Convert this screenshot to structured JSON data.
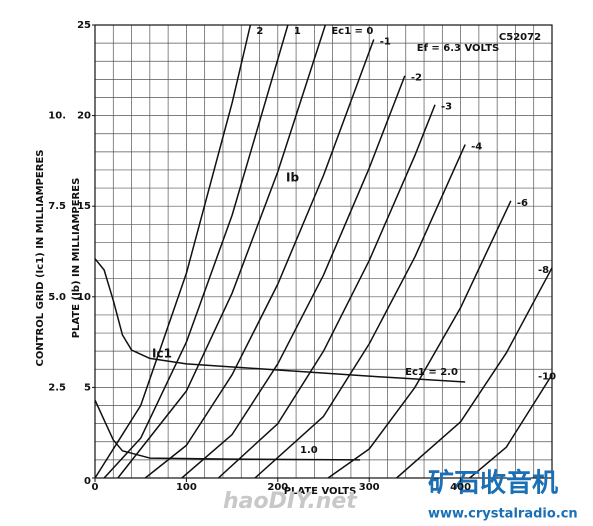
{
  "chart_data": {
    "type": "line",
    "code": "C52072",
    "heater": "Ef = 6.3 VOLTS",
    "xlabel": "PLATE VOLTS",
    "ylabel": "PLATE (Ib) IN MILLIAMPERES",
    "y2label": "CONTROL GRID (Ic1) IN MILLIAMPERES",
    "annotations": [
      "Ib",
      "Ic1"
    ],
    "watermarks": [
      "haoDIY.net",
      "矿石收音机",
      "www.crystalradio.cn"
    ],
    "xlim": [
      0,
      500
    ],
    "xticks": [
      0,
      100,
      200,
      300,
      400
    ],
    "ylim": [
      0,
      25
    ],
    "yticks": [
      0,
      5,
      10,
      15,
      20,
      25
    ],
    "y2lim": [
      0,
      12.5
    ],
    "y2ticks": [
      2.5,
      {
        "value": 5,
        "label": "5.0"
      },
      7.5,
      {
        "value": 10,
        "label": "10."
      }
    ],
    "grid": true,
    "xgrid_step": 20,
    "ygrid_step": 1,
    "color": "#111111",
    "series": [
      {
        "name": "2",
        "x": [
          0,
          50,
          100,
          150,
          170
        ],
        "values": [
          0,
          4.0,
          11.3,
          20.7,
          25
        ]
      },
      {
        "name": "1",
        "x": [
          10,
          50,
          100,
          150,
          211
        ],
        "values": [
          0,
          2.2,
          7.5,
          14.5,
          25
        ]
      },
      {
        "name": "Ec1 = 0",
        "x": [
          25,
          100,
          150,
          200,
          252
        ],
        "values": [
          0,
          4.8,
          10.2,
          16.9,
          25
        ]
      },
      {
        "name": "-1",
        "x": [
          55,
          100,
          150,
          200,
          250,
          305
        ],
        "values": [
          0,
          1.8,
          5.7,
          10.7,
          16.7,
          24.2
        ]
      },
      {
        "name": "-2",
        "x": [
          95,
          150,
          200,
          250,
          300,
          339
        ],
        "values": [
          0,
          2.4,
          6.3,
          11.2,
          17.1,
          22.2
        ]
      },
      {
        "name": "-3",
        "x": [
          135,
          200,
          250,
          300,
          350,
          372
        ],
        "values": [
          0,
          3.0,
          7.0,
          12.0,
          17.8,
          20.6
        ]
      },
      {
        "name": "-4",
        "x": [
          175,
          250,
          300,
          350,
          405
        ],
        "values": [
          0,
          3.4,
          7.4,
          12.2,
          18.4
        ]
      },
      {
        "name": "-6",
        "x": [
          255,
          300,
          350,
          400,
          455
        ],
        "values": [
          0,
          1.6,
          5.0,
          9.4,
          15.3
        ]
      },
      {
        "name": "-8",
        "x": [
          330,
          400,
          450,
          500
        ],
        "values": [
          0,
          3.1,
          6.9,
          11.6
        ]
      },
      {
        "name": "-10",
        "x": [
          410,
          450,
          500
        ],
        "values": [
          0,
          1.7,
          5.7
        ]
      },
      {
        "name": "Ec1 = 2.0",
        "axis": "y2",
        "x": [
          0,
          10,
          20,
          30,
          40,
          60,
          100,
          200,
          300,
          405
        ],
        "values": [
          6.05,
          5.74,
          4.9,
          3.95,
          3.53,
          3.3,
          3.15,
          2.98,
          2.81,
          2.65
        ]
      },
      {
        "name": "1.0",
        "axis": "y2",
        "x": [
          0,
          10,
          20,
          30,
          60,
          150,
          290
        ],
        "values": [
          2.15,
          1.6,
          1.05,
          0.75,
          0.55,
          0.52,
          0.5
        ]
      }
    ]
  }
}
